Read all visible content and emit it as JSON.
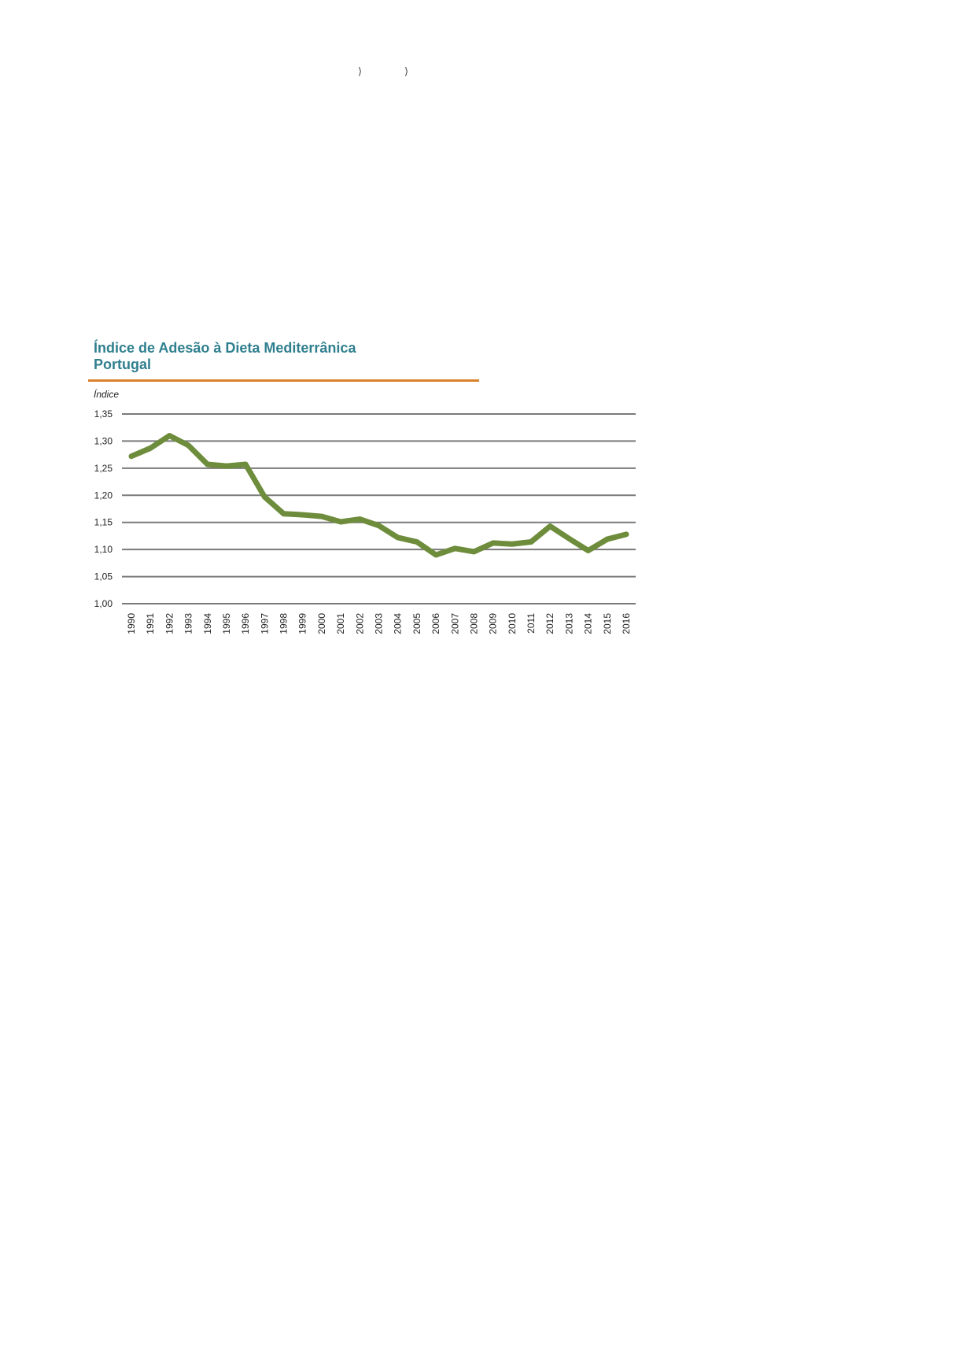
{
  "page": {
    "top_marks": [
      "⟩",
      "⟩"
    ]
  },
  "colors": {
    "title": "#2f7f8e",
    "rule": "#d9822b",
    "line": "#6e8d3c",
    "grid": "#7a7a7a"
  },
  "chart_data": {
    "type": "line",
    "title": "Índice de Adesão à Dieta Mediterrânica",
    "subtitle": "Portugal",
    "ylabel": "Índice",
    "xlabel": "",
    "ylim": [
      1.0,
      1.35
    ],
    "yticks": [
      "1,35",
      "1,30",
      "1,25",
      "1,20",
      "1,15",
      "1,10",
      "1,05",
      "1,00"
    ],
    "ytick_values": [
      1.35,
      1.3,
      1.25,
      1.2,
      1.15,
      1.1,
      1.05,
      1.0
    ],
    "grid": true,
    "x": [
      "1990",
      "1991",
      "1992",
      "1993",
      "1994",
      "1995",
      "1996",
      "1997",
      "1998",
      "1999",
      "2000",
      "2001",
      "2002",
      "2003",
      "2004",
      "2005",
      "2006",
      "2007",
      "2008",
      "2009",
      "2010",
      "2011",
      "2012",
      "2013",
      "2014",
      "2015",
      "2016"
    ],
    "series": [
      {
        "values": [
          1.272,
          1.287,
          1.31,
          1.292,
          1.257,
          1.254,
          1.257,
          1.197,
          1.166,
          1.164,
          1.161,
          1.151,
          1.156,
          1.144,
          1.122,
          1.114,
          1.09,
          1.102,
          1.096,
          1.112,
          1.11,
          1.114,
          1.143,
          1.12,
          1.098,
          1.119,
          1.128
        ]
      }
    ]
  }
}
